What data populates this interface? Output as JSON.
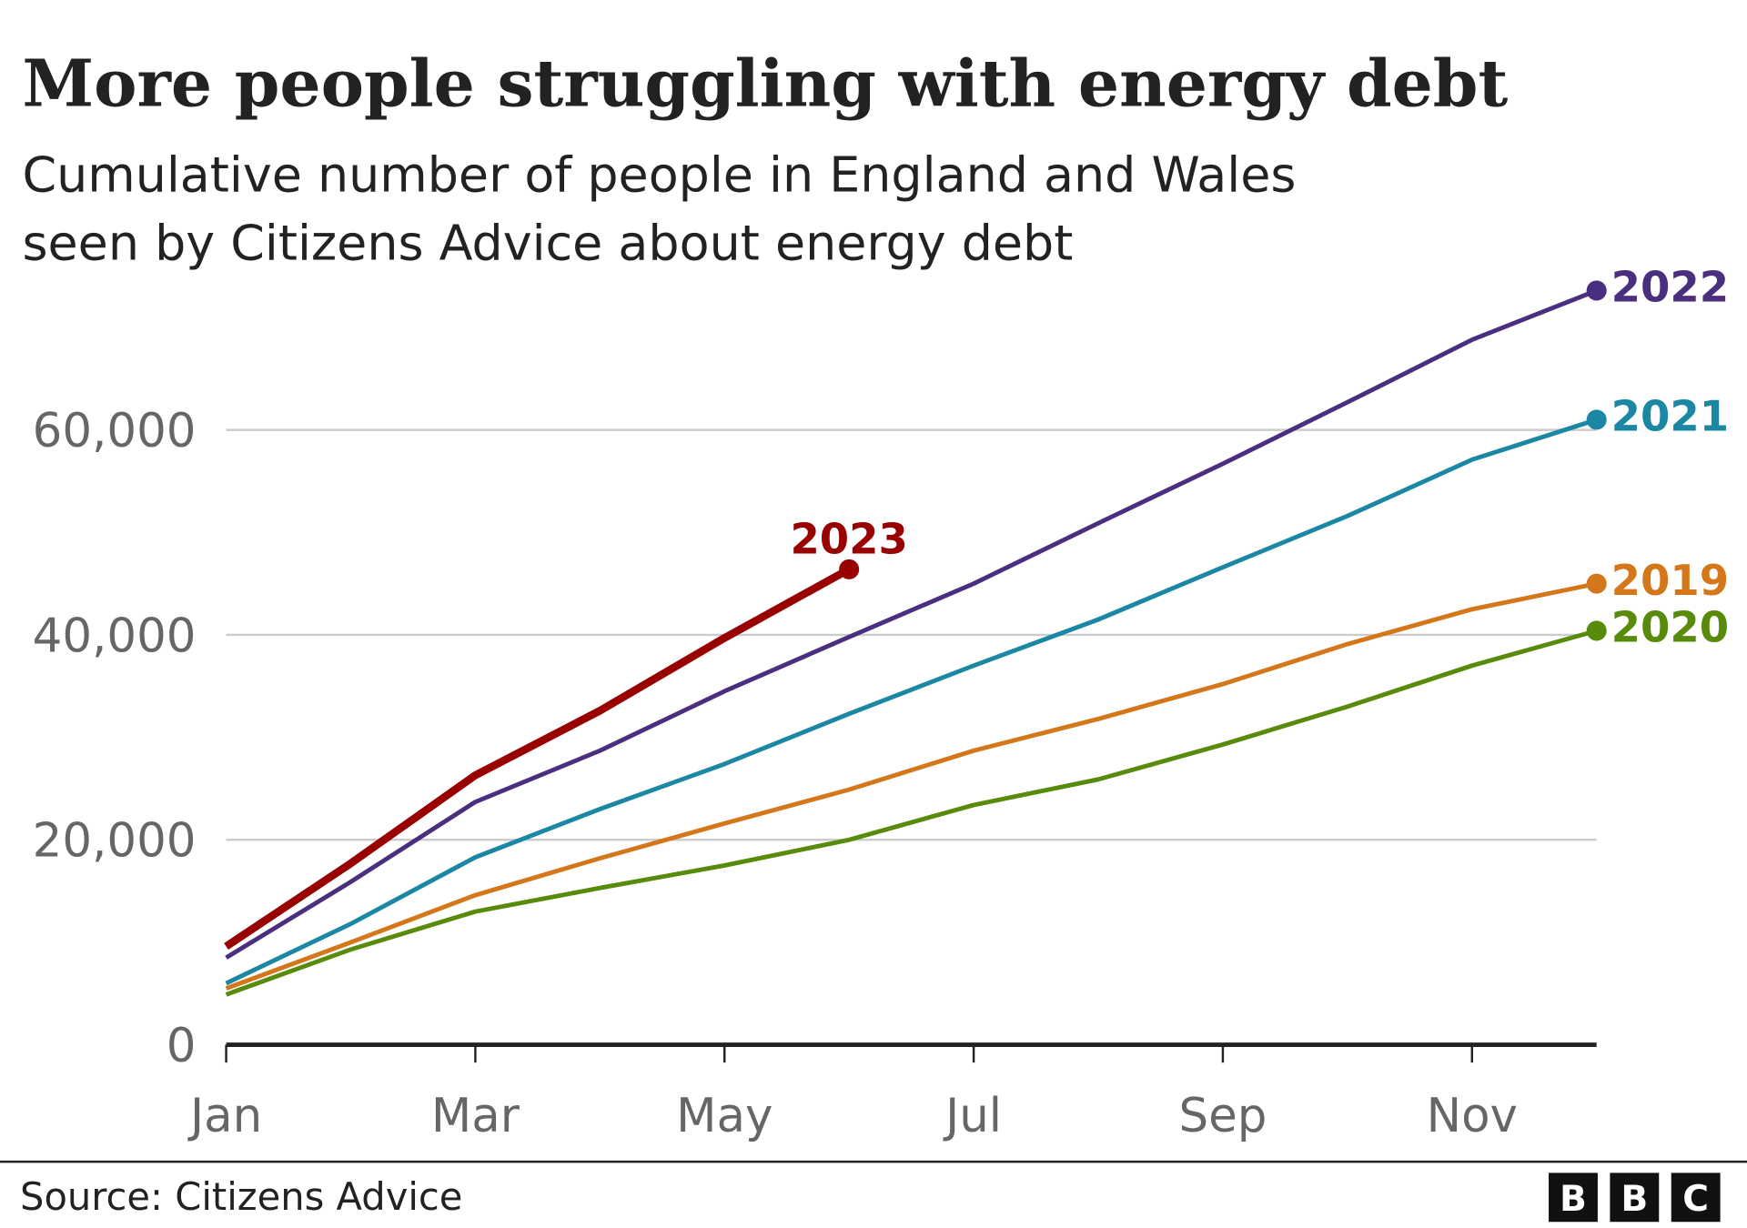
{
  "chart_data": {
    "type": "line",
    "title": "More people struggling with energy debt",
    "subtitle": [
      "Cumulative number of people in England and Wales",
      "seen by Citizens Advice about energy debt"
    ],
    "categories": [
      "Jan",
      null,
      "Mar",
      null,
      "May",
      null,
      "Jul",
      null,
      "Sep",
      null,
      "Nov",
      null
    ],
    "series": [
      {
        "name": "2019",
        "color": "#d4771a",
        "values": [
          5500,
          10000,
          14600,
          18200,
          21600,
          24900,
          28700,
          31800,
          35200,
          39100,
          42500,
          45000
        ]
      },
      {
        "name": "2020",
        "color": "#588a0b",
        "values": [
          4900,
          9300,
          13000,
          15300,
          17500,
          20000,
          23400,
          25900,
          29300,
          33000,
          37000,
          40400
        ]
      },
      {
        "name": "2021",
        "color": "#1b87a3",
        "values": [
          6000,
          11800,
          18300,
          23000,
          27400,
          32300,
          37000,
          41500,
          46600,
          51600,
          57100,
          61000
        ]
      },
      {
        "name": "2022",
        "color": "#4b2f7f",
        "values": [
          8500,
          15900,
          23700,
          28700,
          34500,
          39800,
          45000,
          50900,
          56700,
          62700,
          68800,
          73600
        ]
      },
      {
        "name": "2023",
        "color": "#990000",
        "values": [
          9600,
          17700,
          26300,
          32600,
          39700,
          46400,
          null,
          null,
          null,
          null,
          null,
          null
        ]
      }
    ],
    "ylim": [
      0,
      75000
    ],
    "yticks": [
      0,
      {
        "value": 20000,
        "label": "20,000"
      },
      {
        "value": 40000,
        "label": "40,000"
      },
      {
        "value": 60000,
        "label": "60,000"
      }
    ],
    "grid": true,
    "source": "Source: Citizens Advice",
    "logo": [
      "B",
      "B",
      "C"
    ]
  }
}
